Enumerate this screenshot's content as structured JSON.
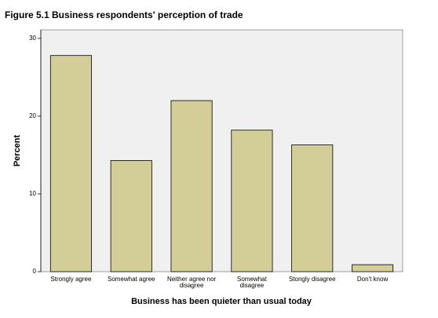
{
  "chart_data": {
    "type": "bar",
    "title": "Figure 5.1 Business respondents' perception of trade",
    "x_label": "Business has been quieter than usual today",
    "y_label": "Percent",
    "categories": [
      "Strongly agree",
      "Somewhat agree",
      "Neither agree nor\ndisagree",
      "Somewhat\ndisagree",
      "Stongly disagree",
      "Don't know"
    ],
    "values": [
      27.8,
      14.3,
      22.0,
      18.2,
      16.3,
      0.9
    ],
    "color": "#d3ce97",
    "ylim": [
      0,
      31.1
    ],
    "yticks": [
      0,
      10,
      20,
      30
    ],
    "grid": false
  }
}
